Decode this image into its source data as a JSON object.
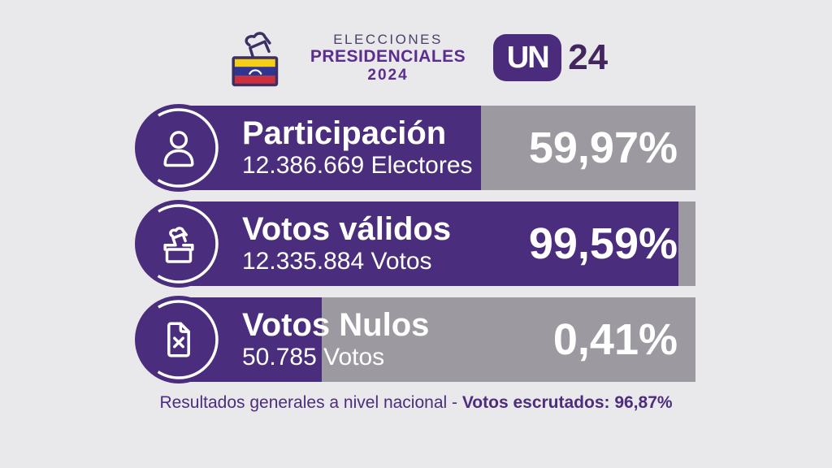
{
  "header": {
    "event_line1": "ELECCIONES",
    "event_line2": "PRESIDENCIALES",
    "event_line3": "2024",
    "channel_logo": "UN",
    "channel_number": "24"
  },
  "bars": [
    {
      "icon": "person-icon",
      "title": "Participación",
      "subtitle": "12.386.669 Electores",
      "percent": "59,97%",
      "fill_width_pct": 58.5
    },
    {
      "icon": "ballot-box-icon",
      "title": "Votos válidos",
      "subtitle": "12.335.884 Votos",
      "percent": "99,59%",
      "fill_width_pct": 96.7
    },
    {
      "icon": "invalid-document-icon",
      "title": "Votos Nulos",
      "subtitle": "50.785 Votos",
      "percent": "0,41%",
      "fill_width_pct": 27.7
    }
  ],
  "footer": {
    "text_regular": "Resultados generales a nivel nacional - ",
    "text_bold": "Votos escrutados: 96,87%"
  },
  "colors": {
    "background": "#e9e8ea",
    "purple_fill": "#4a2d7c",
    "gray_track": "#9c99a0",
    "header_bold_purple": "#5b2d8c",
    "header_muted_purple": "#4a4168",
    "badge_purple": "#4a2b7c",
    "channel_number_purple": "#44265f",
    "caption_purple": "#4c2d7e",
    "text_white": "#ffffff",
    "flag_yellow": "#f5cf17",
    "flag_blue": "#2f3590",
    "flag_red": "#cd2f3c"
  },
  "chart_data": {
    "type": "bar",
    "orientation": "horizontal",
    "title": "Elecciones Presidenciales 2024",
    "categories": [
      "Participación",
      "Votos válidos",
      "Votos Nulos"
    ],
    "values": [
      59.97,
      99.59,
      0.41
    ],
    "value_labels": [
      "59,97%",
      "99,59%",
      "0,41%"
    ],
    "absolute_counts": [
      12386669,
      12335884,
      50785
    ],
    "absolute_labels": [
      "12.386.669 Electores",
      "12.335.884 Votos",
      "50.785 Votos"
    ],
    "value_unit": "%",
    "xlim": [
      0,
      100
    ],
    "grid": false,
    "legend": false,
    "bar_colors": {
      "filled": "#4a2d7c",
      "track": "#9c99a0"
    },
    "annotation": "Resultados generales a nivel nacional - Votos escrutados: 96,87%",
    "votes_counted_percent": 96.87
  }
}
